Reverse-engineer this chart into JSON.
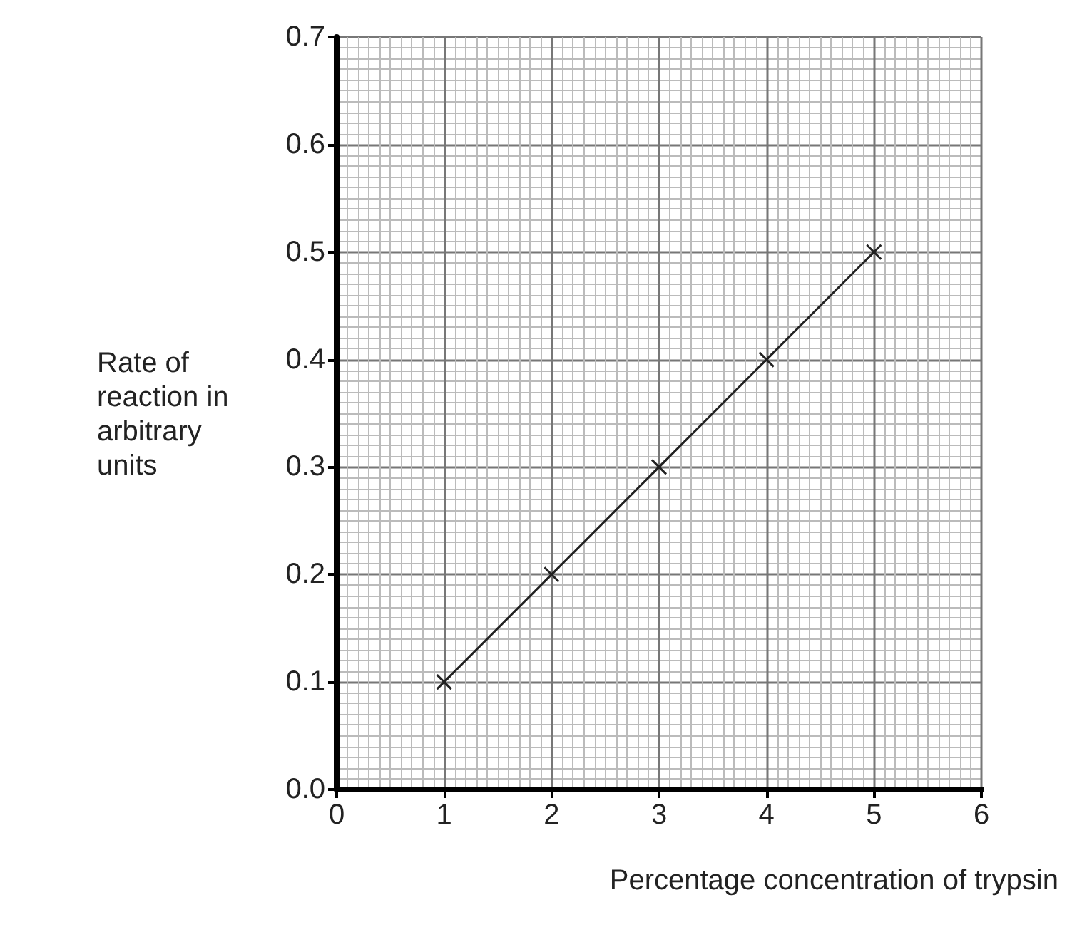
{
  "chart_data": {
    "type": "line",
    "xlabel": "Percentage concentration of trypsin",
    "ylabel": "Rate of\nreaction in\narbitrary\nunits",
    "x": [
      1,
      2,
      3,
      4,
      5
    ],
    "series": [
      {
        "color": "#222222",
        "values": [
          0.1,
          0.2,
          0.3,
          0.4,
          0.5
        ]
      }
    ],
    "xlim": [
      0,
      6
    ],
    "xticks": [
      0,
      1,
      2,
      3,
      4,
      5,
      6
    ],
    "ylim": [
      0,
      0.7
    ],
    "yticks": [
      {
        "value": 0,
        "label": "0.0"
      },
      {
        "value": 0.1,
        "label": "0.1"
      },
      {
        "value": 0.2,
        "label": "0.2"
      },
      {
        "value": 0.3,
        "label": "0.3"
      },
      {
        "value": 0.4,
        "label": "0.4"
      },
      {
        "value": 0.5,
        "label": "0.5"
      },
      {
        "value": 0.6,
        "label": "0.6"
      },
      {
        "value": 0.7,
        "label": "0.7"
      }
    ],
    "grid": true,
    "marker": "cross",
    "line_style": "solid"
  }
}
